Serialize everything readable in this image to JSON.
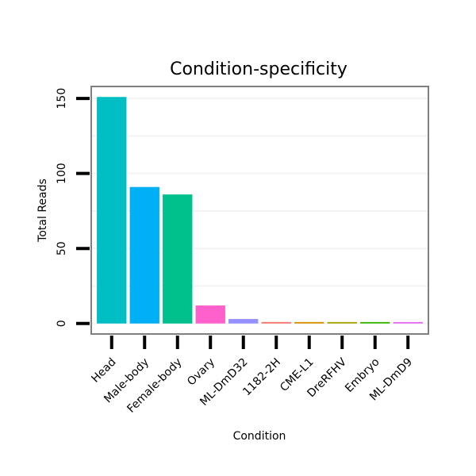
{
  "chart_data": {
    "type": "bar",
    "title": "Condition-specificity",
    "xlabel": "Condition",
    "ylabel": "Total Reads",
    "ylim": [
      -7,
      158
    ],
    "yticks": [
      0,
      50,
      100,
      150
    ],
    "grid": true,
    "legend": "none",
    "categories": [
      "Head",
      "Male-body",
      "Female-body",
      "Ovary",
      "ML-DmD32",
      "1182-2H",
      "CME-L1",
      "DreRFHV",
      "Embryo",
      "ML-DmD9"
    ],
    "values": [
      151,
      91,
      86,
      12,
      3,
      1,
      1,
      1,
      1,
      1
    ],
    "colors": [
      "#00BFC4",
      "#00B0F6",
      "#00C08B",
      "#FF61CC",
      "#9590FF",
      "#F8766D",
      "#D89000",
      "#A3A500",
      "#39B600",
      "#E76BF3"
    ]
  }
}
